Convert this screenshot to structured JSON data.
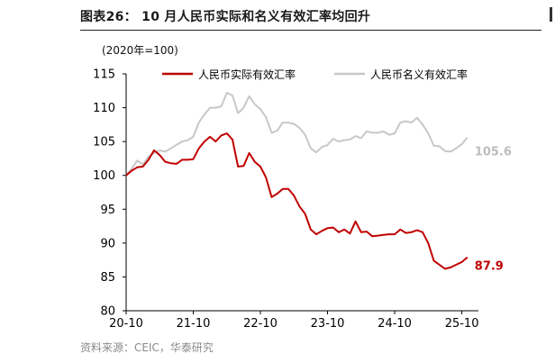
{
  "figure": {
    "title": "图表26：  10 月人民币实际和名义有效汇率均回升",
    "source": "资料来源：CEIC，华泰研究"
  },
  "chart_data": {
    "type": "line",
    "unit_label": "(2020年=100)",
    "x_tick_labels": [
      "20-10",
      "21-10",
      "22-10",
      "23-10",
      "24-10",
      "25-10"
    ],
    "y_tick_labels": [
      "80",
      "85",
      "90",
      "95",
      "100",
      "105",
      "110",
      "115"
    ],
    "ylim": [
      80,
      115
    ],
    "xlim": [
      "2020-10",
      "2025-12"
    ],
    "grid": false,
    "legend_position": "top",
    "series": [
      {
        "name": "人民币实际有效汇率",
        "color": "#c00000",
        "end_label": "87.9",
        "points": [
          [
            "2020-10",
            100.0
          ],
          [
            "2020-11",
            100.7
          ],
          [
            "2020-12",
            101.2
          ],
          [
            "2021-01",
            101.3
          ],
          [
            "2021-02",
            102.3
          ],
          [
            "2021-03",
            103.7
          ],
          [
            "2021-04",
            103.0
          ],
          [
            "2021-05",
            102.0
          ],
          [
            "2021-06",
            101.8
          ],
          [
            "2021-07",
            101.7
          ],
          [
            "2021-08",
            102.3
          ],
          [
            "2021-09",
            102.3
          ],
          [
            "2021-10",
            102.4
          ],
          [
            "2021-11",
            104.0
          ],
          [
            "2021-12",
            105.0
          ],
          [
            "2022-01",
            105.7
          ],
          [
            "2022-02",
            105.0
          ],
          [
            "2022-03",
            105.9
          ],
          [
            "2022-04",
            106.2
          ],
          [
            "2022-05",
            105.3
          ],
          [
            "2022-06",
            101.3
          ],
          [
            "2022-07",
            101.4
          ],
          [
            "2022-08",
            103.3
          ],
          [
            "2022-09",
            102.0
          ],
          [
            "2022-10",
            101.3
          ],
          [
            "2022-11",
            99.7
          ],
          [
            "2022-12",
            96.8
          ],
          [
            "2023-01",
            97.3
          ],
          [
            "2023-02",
            98.0
          ],
          [
            "2023-03",
            98.0
          ],
          [
            "2023-04",
            97.0
          ],
          [
            "2023-05",
            95.4
          ],
          [
            "2023-06",
            94.3
          ],
          [
            "2023-07",
            92.0
          ],
          [
            "2023-08",
            91.3
          ],
          [
            "2023-09",
            91.8
          ],
          [
            "2023-10",
            92.2
          ],
          [
            "2023-11",
            92.3
          ],
          [
            "2023-12",
            91.6
          ],
          [
            "2024-01",
            92.0
          ],
          [
            "2024-02",
            91.4
          ],
          [
            "2024-03",
            93.2
          ],
          [
            "2024-04",
            91.6
          ],
          [
            "2024-05",
            91.7
          ],
          [
            "2024-06",
            91.0
          ],
          [
            "2024-07",
            91.1
          ],
          [
            "2024-08",
            91.2
          ],
          [
            "2024-09",
            91.3
          ],
          [
            "2024-10",
            91.3
          ],
          [
            "2024-11",
            92.0
          ],
          [
            "2024-12",
            91.5
          ],
          [
            "2025-01",
            91.6
          ],
          [
            "2025-02",
            91.9
          ],
          [
            "2025-03",
            91.6
          ],
          [
            "2025-04",
            90.0
          ],
          [
            "2025-05",
            87.4
          ],
          [
            "2025-06",
            86.8
          ],
          [
            "2025-07",
            86.2
          ],
          [
            "2025-08",
            86.4
          ],
          [
            "2025-09",
            86.8
          ],
          [
            "2025-10",
            87.2
          ],
          [
            "2025-11",
            87.9
          ]
        ]
      },
      {
        "name": "人民币名义有效汇率",
        "color": "#c8c8c8",
        "end_label": "105.6",
        "points": [
          [
            "2020-10",
            100.0
          ],
          [
            "2020-11",
            101.0
          ],
          [
            "2020-12",
            102.2
          ],
          [
            "2021-01",
            101.6
          ],
          [
            "2021-02",
            102.8
          ],
          [
            "2021-03",
            103.3
          ],
          [
            "2021-04",
            103.7
          ],
          [
            "2021-05",
            103.5
          ],
          [
            "2021-06",
            104.0
          ],
          [
            "2021-07",
            104.5
          ],
          [
            "2021-08",
            105.0
          ],
          [
            "2021-09",
            105.2
          ],
          [
            "2021-10",
            105.7
          ],
          [
            "2021-11",
            107.8
          ],
          [
            "2021-12",
            109.0
          ],
          [
            "2022-01",
            110.0
          ],
          [
            "2022-02",
            110.0
          ],
          [
            "2022-03",
            110.2
          ],
          [
            "2022-04",
            112.2
          ],
          [
            "2022-05",
            111.8
          ],
          [
            "2022-06",
            109.2
          ],
          [
            "2022-07",
            110.0
          ],
          [
            "2022-08",
            111.7
          ],
          [
            "2022-09",
            110.5
          ],
          [
            "2022-10",
            109.8
          ],
          [
            "2022-11",
            108.6
          ],
          [
            "2022-12",
            106.3
          ],
          [
            "2023-01",
            106.6
          ],
          [
            "2023-02",
            107.8
          ],
          [
            "2023-03",
            107.8
          ],
          [
            "2023-04",
            107.6
          ],
          [
            "2023-05",
            107.0
          ],
          [
            "2023-06",
            106.0
          ],
          [
            "2023-07",
            104.0
          ],
          [
            "2023-08",
            103.4
          ],
          [
            "2023-09",
            104.2
          ],
          [
            "2023-10",
            104.5
          ],
          [
            "2023-11",
            105.4
          ],
          [
            "2023-12",
            105.0
          ],
          [
            "2024-01",
            105.2
          ],
          [
            "2024-02",
            105.3
          ],
          [
            "2024-03",
            105.8
          ],
          [
            "2024-04",
            105.5
          ],
          [
            "2024-05",
            106.5
          ],
          [
            "2024-06",
            106.3
          ],
          [
            "2024-07",
            106.3
          ],
          [
            "2024-08",
            106.5
          ],
          [
            "2024-09",
            106.0
          ],
          [
            "2024-10",
            106.2
          ],
          [
            "2024-11",
            107.8
          ],
          [
            "2024-12",
            108.0
          ],
          [
            "2025-01",
            107.8
          ],
          [
            "2025-02",
            108.5
          ],
          [
            "2025-03",
            107.5
          ],
          [
            "2025-04",
            106.2
          ],
          [
            "2025-05",
            104.4
          ],
          [
            "2025-06",
            104.3
          ],
          [
            "2025-07",
            103.6
          ],
          [
            "2025-08",
            103.5
          ],
          [
            "2025-09",
            104.0
          ],
          [
            "2025-10",
            104.6
          ],
          [
            "2025-11",
            105.6
          ]
        ]
      }
    ]
  }
}
